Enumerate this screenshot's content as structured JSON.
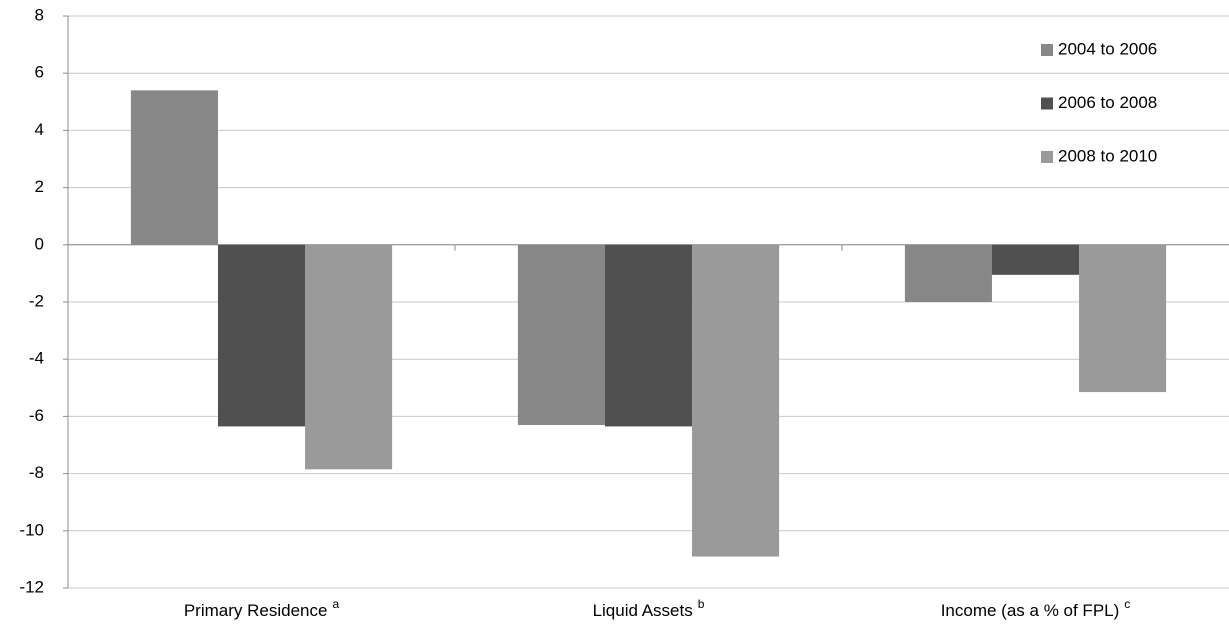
{
  "chart_data": {
    "type": "bar",
    "categories": [
      "Primary Residence",
      "Liquid Assets",
      "Income (as a % of FPL)"
    ],
    "category_superscripts": [
      "a",
      "b",
      "c"
    ],
    "series": [
      {
        "name": "2004 to 2006",
        "color": "#878787",
        "values": [
          5.4,
          -6.3,
          -2.0
        ]
      },
      {
        "name": "2006 to 2008",
        "color": "#505050",
        "values": [
          -6.35,
          -6.35,
          -1.05
        ]
      },
      {
        "name": "2008 to 2010",
        "color": "#9a9a9a",
        "values": [
          -7.85,
          -10.9,
          -5.15
        ]
      }
    ],
    "ylim": [
      -12,
      8
    ],
    "yticks": [
      -12,
      -10,
      -8,
      -6,
      -4,
      -2,
      0,
      2,
      4,
      6,
      8
    ],
    "grid": true,
    "legend": "upper right"
  }
}
